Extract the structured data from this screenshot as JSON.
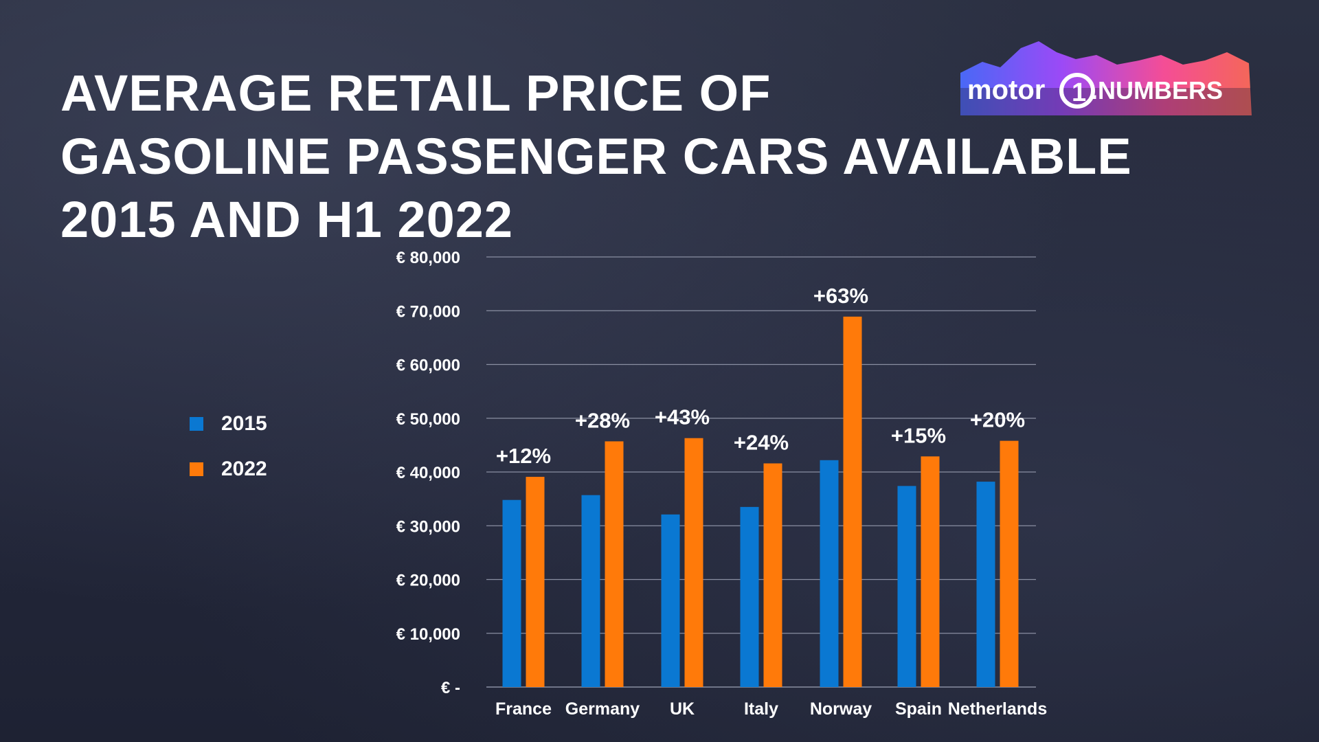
{
  "title": {
    "line1": "AVERAGE RETAIL PRICE OF",
    "line2": "GASOLINE PASSENGER CARS AVAILABLE",
    "line3": "2015 AND H1 2022"
  },
  "brand": {
    "logo_text_left": "motor",
    "logo_numeral": "1",
    "logo_text_right": ".NUMBERS"
  },
  "colors": {
    "series_2015": "#0a78d2",
    "series_2022": "#ff7a0a",
    "gridline": "#8a8fa2",
    "text": "#ffffff"
  },
  "chart_data": {
    "type": "bar",
    "title": "AVERAGE RETAIL PRICE OF GASOLINE PASSENGER CARS AVAILABLE 2015 AND H1 2022",
    "xlabel": "",
    "ylabel": "",
    "categories": [
      "France",
      "Germany",
      "UK",
      "Italy",
      "Norway",
      "Spain",
      "Netherlands"
    ],
    "series": [
      {
        "name": "2015",
        "values": [
          34800,
          35700,
          32100,
          33500,
          42200,
          37400,
          38200
        ]
      },
      {
        "name": "2022",
        "values": [
          39100,
          45700,
          46300,
          41600,
          68900,
          42900,
          45800
        ]
      }
    ],
    "change_labels": [
      "+12%",
      "+28%",
      "+43%",
      "+24%",
      "+63%",
      "+15%",
      "+20%"
    ],
    "ylim": [
      0,
      80000
    ],
    "yticks": [
      0,
      10000,
      20000,
      30000,
      40000,
      50000,
      60000,
      70000,
      80000
    ],
    "ytick_labels": [
      "€ -",
      "€ 10,000",
      "€ 20,000",
      "€ 30,000",
      "€ 40,000",
      "€ 50,000",
      "€ 60,000",
      "€ 70,000",
      "€ 80,000"
    ],
    "grid": true,
    "legend_position": "left"
  }
}
